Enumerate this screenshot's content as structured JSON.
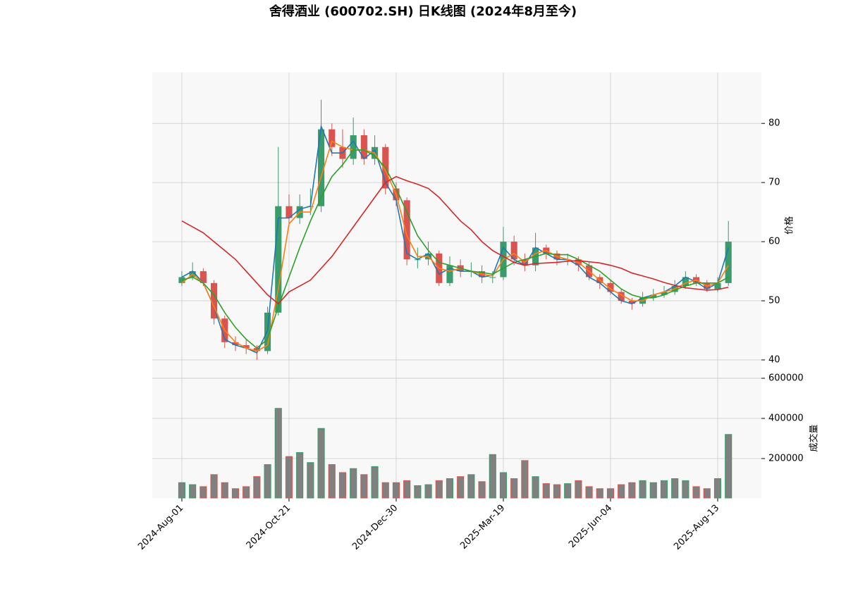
{
  "chart_data": {
    "type": "candlestick",
    "title": "舍得酒业 (600702.SH) 日K线图 (2024年8月至今)",
    "ylabel": "价格",
    "volume_label": "成交量",
    "grid": true,
    "xlim": [
      -2.76,
      54.08
    ],
    "xticks": [
      {
        "value": 0,
        "label": "2024-Aug-01"
      },
      {
        "value": 10,
        "label": "2024-Oct-21"
      },
      {
        "value": 20,
        "label": "2024-Dec-30"
      },
      {
        "value": 30,
        "label": "2025-Mar-19"
      },
      {
        "value": 40,
        "label": "2025-Jun-04"
      },
      {
        "value": 50,
        "label": "2025-Aug-13"
      }
    ],
    "ylim": [
      36.9,
      88.6
    ],
    "yticks": [
      40,
      50,
      60,
      70,
      80
    ],
    "volume_ylim": [
      3500,
      600000
    ],
    "volume_yticks": [
      200000,
      400000,
      600000
    ],
    "up_color": "#3a9b6b",
    "down_color": "#d9534f",
    "volume_color": "#808080",
    "open": [
      53,
      54,
      55,
      53,
      47,
      43,
      42.5,
      42,
      41.5,
      48,
      66,
      64,
      66,
      66,
      79,
      76,
      74,
      78,
      74,
      76,
      69,
      67,
      57,
      57,
      58,
      53,
      56,
      55,
      55,
      54,
      54,
      60,
      57,
      56,
      59,
      58,
      57,
      57,
      56,
      54,
      53,
      51.5,
      50,
      49.5,
      50.5,
      51,
      51.5,
      52.5,
      54,
      53,
      52,
      53
    ],
    "high": [
      55,
      56.5,
      55.5,
      53.5,
      47.5,
      44,
      43.5,
      42.5,
      49,
      76,
      68,
      68,
      69,
      84,
      80,
      79,
      81,
      79,
      78,
      76.5,
      70,
      67.5,
      59,
      60,
      58.5,
      57.5,
      57,
      56.5,
      56,
      55,
      62.5,
      61,
      58,
      61.5,
      59.5,
      58.5,
      58,
      57.5,
      56.5,
      54.5,
      53.5,
      52,
      50.5,
      51.5,
      52,
      52.5,
      53.5,
      55,
      54.5,
      53.5,
      54,
      63.5
    ],
    "low": [
      52.5,
      53.5,
      52.5,
      46,
      42,
      41.5,
      41,
      40,
      41,
      47.5,
      62.5,
      63,
      64.5,
      65,
      74.5,
      72.5,
      73,
      73,
      73,
      68,
      66,
      56,
      55.5,
      56,
      52.5,
      52.5,
      54,
      54,
      53,
      53,
      53.5,
      56,
      55,
      55,
      57,
      56,
      56,
      55,
      53.5,
      52,
      51,
      49.5,
      48.5,
      49,
      50,
      50.5,
      51,
      52,
      52.5,
      51.5,
      51.5,
      52.5
    ],
    "close": [
      54,
      55,
      53,
      47,
      43,
      42.5,
      42,
      41.5,
      48,
      66,
      64,
      66,
      66,
      79,
      76,
      74,
      78,
      74,
      76,
      69,
      67,
      57,
      57,
      58,
      53,
      56,
      55,
      55,
      54,
      54,
      60,
      57,
      56,
      59,
      58,
      57,
      57,
      56,
      54,
      53,
      51.5,
      50,
      49.5,
      50.5,
      51,
      51.5,
      52.5,
      54,
      53,
      52,
      53,
      60
    ],
    "volume": [
      80000,
      70000,
      60000,
      120000,
      80000,
      50000,
      60000,
      110000,
      170000,
      450000,
      210000,
      230000,
      180000,
      350000,
      170000,
      130000,
      150000,
      120000,
      160000,
      80000,
      80000,
      90000,
      65000,
      70000,
      90000,
      100000,
      110000,
      120000,
      85000,
      220000,
      130000,
      100000,
      190000,
      110000,
      75000,
      70000,
      75000,
      90000,
      60000,
      50000,
      50000,
      70000,
      80000,
      90000,
      80000,
      90000,
      100000,
      90000,
      60000,
      50000,
      100000,
      320000
    ],
    "series": [
      {
        "color": "#1f77b4",
        "values": [
          54,
          55,
          53,
          49,
          43.5,
          42.5,
          42,
          41.2,
          45,
          64,
          64,
          65.5,
          66,
          79.5,
          75,
          75,
          77,
          74,
          75.5,
          70,
          67,
          58,
          57,
          58,
          54.5,
          55.5,
          55,
          55,
          54,
          54.3,
          59,
          57,
          56,
          59,
          58,
          57,
          57,
          56,
          54,
          53,
          51.5,
          50,
          49.5,
          50.5,
          51,
          51.5,
          52.5,
          54,
          53.2,
          52,
          53,
          59
        ]
      },
      {
        "color": "#ff7f0e",
        "values": [
          53,
          54.5,
          53,
          49,
          45,
          43,
          42,
          41.5,
          42.5,
          52,
          63,
          65,
          65,
          71,
          77,
          76,
          75.5,
          75.5,
          75,
          72,
          68,
          61,
          57.5,
          57.5,
          55.5,
          55,
          55.5,
          55,
          54.5,
          54.2,
          57,
          58,
          56.5,
          58,
          58.5,
          57.5,
          57,
          56.5,
          55,
          53.5,
          52,
          51,
          50,
          50,
          51,
          51.5,
          52,
          53,
          53.5,
          52.5,
          53,
          56
        ]
      },
      {
        "color": "#2ca02c",
        "values": [
          53.5,
          54,
          53,
          51,
          48,
          45.5,
          43.5,
          42,
          43.5,
          49,
          54,
          59,
          63.5,
          67.5,
          71,
          73,
          75.5,
          75.5,
          74.5,
          72.5,
          69,
          65,
          61,
          58.5,
          56.5,
          56,
          55.5,
          55,
          54.8,
          54.5,
          55.5,
          56.5,
          57,
          57.5,
          58,
          57.8,
          57.8,
          57,
          56,
          55,
          53.5,
          52,
          51,
          50.5,
          50.5,
          51,
          51.8,
          52.5,
          53,
          53,
          53,
          54
        ]
      },
      {
        "color": "#d62728",
        "values": [
          63.5,
          62.5,
          61.5,
          60,
          58.5,
          57,
          55,
          53,
          51,
          49.5,
          51.5,
          52.5,
          53.5,
          55.5,
          57.5,
          60,
          62.5,
          65,
          67.5,
          70,
          71,
          70.3,
          69.7,
          69,
          67.5,
          65.5,
          63.5,
          62,
          60,
          58.5,
          57.5,
          56.5,
          56,
          56.3,
          56.4,
          56.5,
          56.7,
          56.8,
          56.6,
          56.4,
          56,
          55.5,
          54.7,
          54.2,
          53.7,
          53.1,
          52.6,
          52.2,
          52,
          51.8,
          51.9,
          52.3
        ]
      }
    ]
  }
}
